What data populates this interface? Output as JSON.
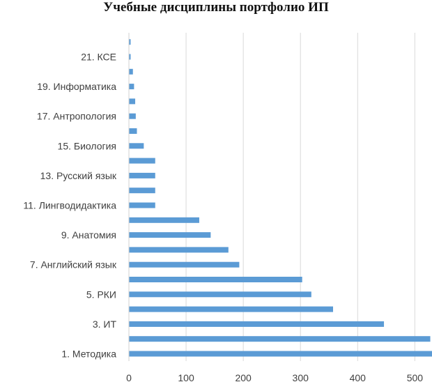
{
  "chart_data": {
    "type": "bar",
    "orientation": "horizontal",
    "title": "Учебные дисциплины портфолио ИП",
    "xlabel": "",
    "ylabel": "",
    "xlim": [
      0,
      530
    ],
    "xticks": [
      "0",
      "100",
      "200",
      "300",
      "400",
      "500"
    ],
    "grid": "vertical",
    "bar_color": "#5B9BD5",
    "categories": [
      "1. Методика",
      "",
      "3. ИТ",
      "",
      "5. РКИ",
      "",
      "7. Английский язык",
      "",
      "9. Анатомия",
      "",
      "11. Лингводидактика",
      "",
      "13. Русский язык",
      "",
      "15. Биология",
      "",
      "17. Антропология",
      "",
      "19. Информатика",
      "",
      "21. КСЕ",
      ""
    ],
    "values": [
      530,
      527,
      446,
      357,
      319,
      303,
      193,
      174,
      143,
      123,
      46,
      46,
      46,
      46,
      26,
      14,
      12,
      11,
      9,
      7,
      3,
      3
    ]
  }
}
